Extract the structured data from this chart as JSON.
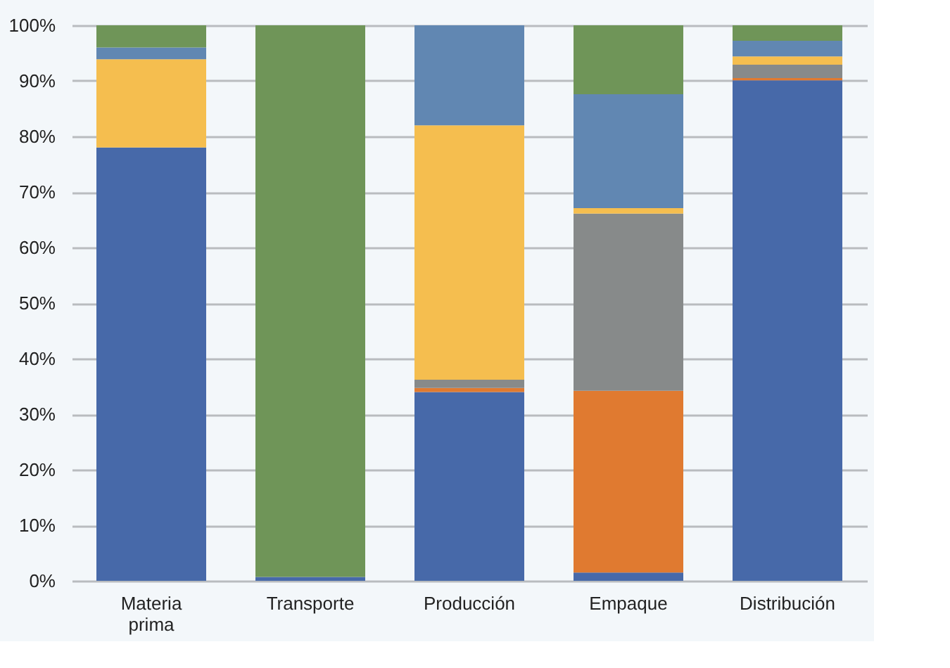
{
  "chart_data": {
    "type": "bar",
    "stacked": true,
    "categories": [
      "Materia prima",
      "Transporte",
      "Producción",
      "Empaque",
      "Distribución"
    ],
    "series": [
      {
        "color": "#4769a9",
        "values": [
          78.0,
          0.7,
          34.0,
          1.5,
          90.1
        ]
      },
      {
        "color": "#e07a30",
        "values": [
          0,
          0,
          0.7,
          32.7,
          0.4
        ]
      },
      {
        "color": "#878a8a",
        "values": [
          0,
          0,
          1.5,
          31.9,
          2.4
        ]
      },
      {
        "color": "#f5be4f",
        "values": [
          15.9,
          0,
          45.8,
          1.0,
          1.5
        ]
      },
      {
        "color": "#6187b2",
        "values": [
          2.1,
          0,
          18.0,
          20.5,
          2.8
        ]
      },
      {
        "color": "#6f9558",
        "values": [
          4.0,
          99.3,
          0,
          12.4,
          2.8
        ]
      }
    ],
    "ylim": [
      0,
      100
    ],
    "yticks": [
      {
        "value": 0,
        "label": "0%"
      },
      {
        "value": 10,
        "label": "10%"
      },
      {
        "value": 20,
        "label": "20%"
      },
      {
        "value": 30,
        "label": "30%"
      },
      {
        "value": 40,
        "label": "40%"
      },
      {
        "value": 50,
        "label": "50%"
      },
      {
        "value": 60,
        "label": "60%"
      },
      {
        "value": 70,
        "label": "70%"
      },
      {
        "value": 80,
        "label": "80%"
      },
      {
        "value": 90,
        "label": "90%"
      },
      {
        "value": 100,
        "label": "100%"
      }
    ],
    "grid": "y",
    "legend": false
  }
}
